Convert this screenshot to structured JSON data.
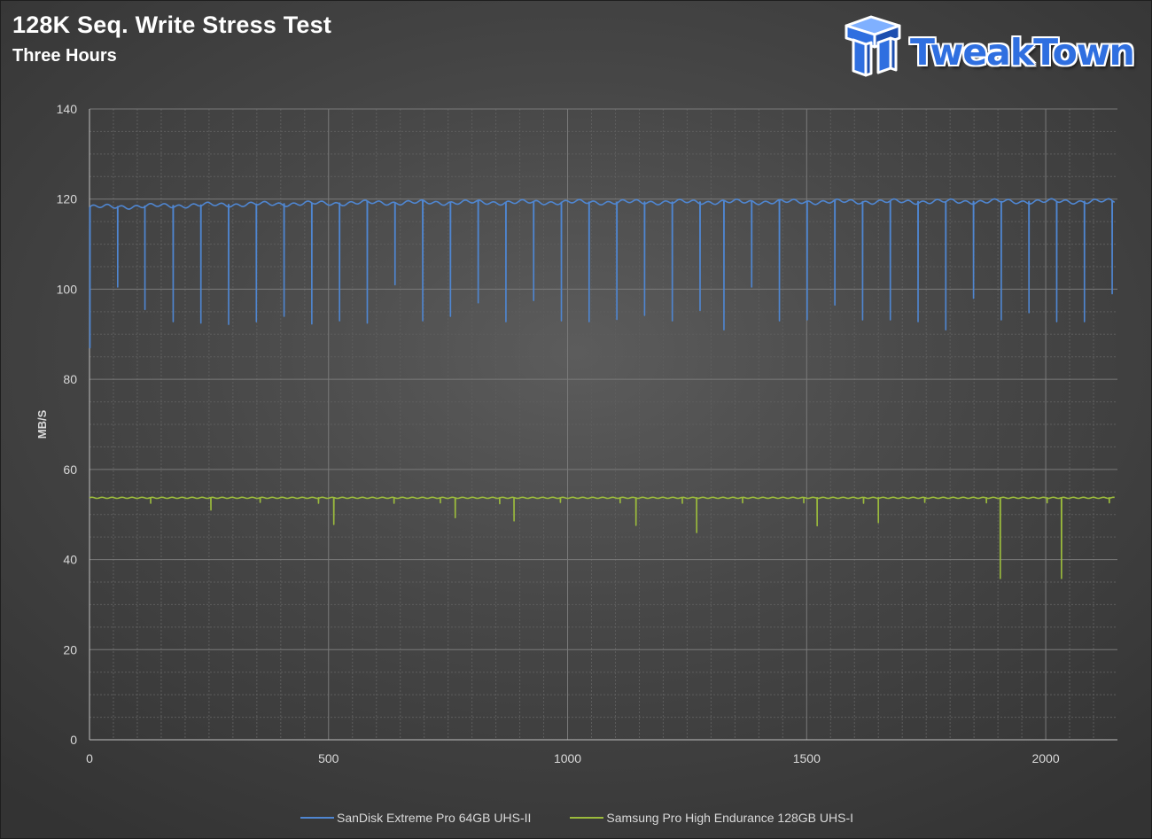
{
  "header": {
    "title": "128K Seq. Write Stress Test",
    "subtitle": "Three Hours",
    "logo_text": "TweakTown"
  },
  "colors": {
    "sandisk": "#4f86d1",
    "samsung": "#9bbb3c",
    "logo_blue": "#2f6fe0"
  },
  "chart_data": {
    "type": "line",
    "title": "128K Seq. Write Stress Test",
    "subtitle": "Three Hours",
    "xlabel": "",
    "ylabel": "MB/S",
    "xlim": [
      0,
      2150
    ],
    "ylim": [
      0,
      140
    ],
    "x_ticks": [
      0,
      500,
      1000,
      1500,
      2000
    ],
    "y_ticks": [
      0,
      20,
      40,
      60,
      80,
      100,
      120,
      140
    ],
    "grid": true,
    "legend_position": "bottom",
    "series": [
      {
        "name": "SanDisk Extreme Pro 64GB UHS-II",
        "color": "#4f86d1",
        "x_range": [
          0,
          2145
        ],
        "baseline": [
          [
            0,
            118.2
          ],
          [
            300,
            118.8
          ],
          [
            600,
            119.2
          ],
          [
            1000,
            119.3
          ],
          [
            1500,
            119.4
          ],
          [
            2145,
            119.5
          ]
        ],
        "dips": [
          [
            1,
            87
          ],
          [
            59,
            100.5
          ],
          [
            116,
            95.5
          ],
          [
            175,
            92.8
          ],
          [
            233,
            92.5
          ],
          [
            291,
            92.2
          ],
          [
            349,
            92.8
          ],
          [
            407,
            94
          ],
          [
            465,
            92.3
          ],
          [
            523,
            93
          ],
          [
            581,
            92.5
          ],
          [
            639,
            101
          ],
          [
            697,
            93
          ],
          [
            755,
            94
          ],
          [
            813,
            97
          ],
          [
            871,
            92.8
          ],
          [
            929,
            97.5
          ],
          [
            987,
            93
          ],
          [
            1045,
            92.8
          ],
          [
            1103,
            93.3
          ],
          [
            1161,
            94.2
          ],
          [
            1219,
            93
          ],
          [
            1277,
            95.3
          ],
          [
            1327,
            91
          ],
          [
            1385,
            100.5
          ],
          [
            1443,
            93
          ],
          [
            1501,
            93.2
          ],
          [
            1559,
            96.5
          ],
          [
            1617,
            93.2
          ],
          [
            1675,
            93.2
          ],
          [
            1733,
            92.8
          ],
          [
            1791,
            91
          ],
          [
            1849,
            98
          ],
          [
            1907,
            93.2
          ],
          [
            1965,
            94.8
          ],
          [
            2023,
            92.8
          ],
          [
            2081,
            92.8
          ],
          [
            2139,
            99
          ]
        ]
      },
      {
        "name": "Samsung Pro High Endurance 128GB UHS-I",
        "color": "#9bbb3c",
        "x_range": [
          0,
          2145
        ],
        "baseline": [
          [
            0,
            53.7
          ],
          [
            2145,
            53.7
          ]
        ],
        "dips": [
          [
            128,
            52.5
          ],
          [
            254,
            51
          ],
          [
            357,
            52.7
          ],
          [
            479,
            52.5
          ],
          [
            511,
            47.8
          ],
          [
            637,
            52.5
          ],
          [
            734,
            52.6
          ],
          [
            765,
            49.3
          ],
          [
            858,
            52.4
          ],
          [
            888,
            48.6
          ],
          [
            985,
            52.7
          ],
          [
            1110,
            52.6
          ],
          [
            1143,
            47.6
          ],
          [
            1240,
            52.5
          ],
          [
            1270,
            46
          ],
          [
            1366,
            52.6
          ],
          [
            1494,
            52.6
          ],
          [
            1522,
            47.5
          ],
          [
            1619,
            52.5
          ],
          [
            1650,
            48.2
          ],
          [
            1747,
            52.7
          ],
          [
            1876,
            52.6
          ],
          [
            1905,
            35.8
          ],
          [
            2003,
            52.6
          ],
          [
            2033,
            35.8
          ],
          [
            2133,
            52.6
          ]
        ]
      }
    ]
  }
}
